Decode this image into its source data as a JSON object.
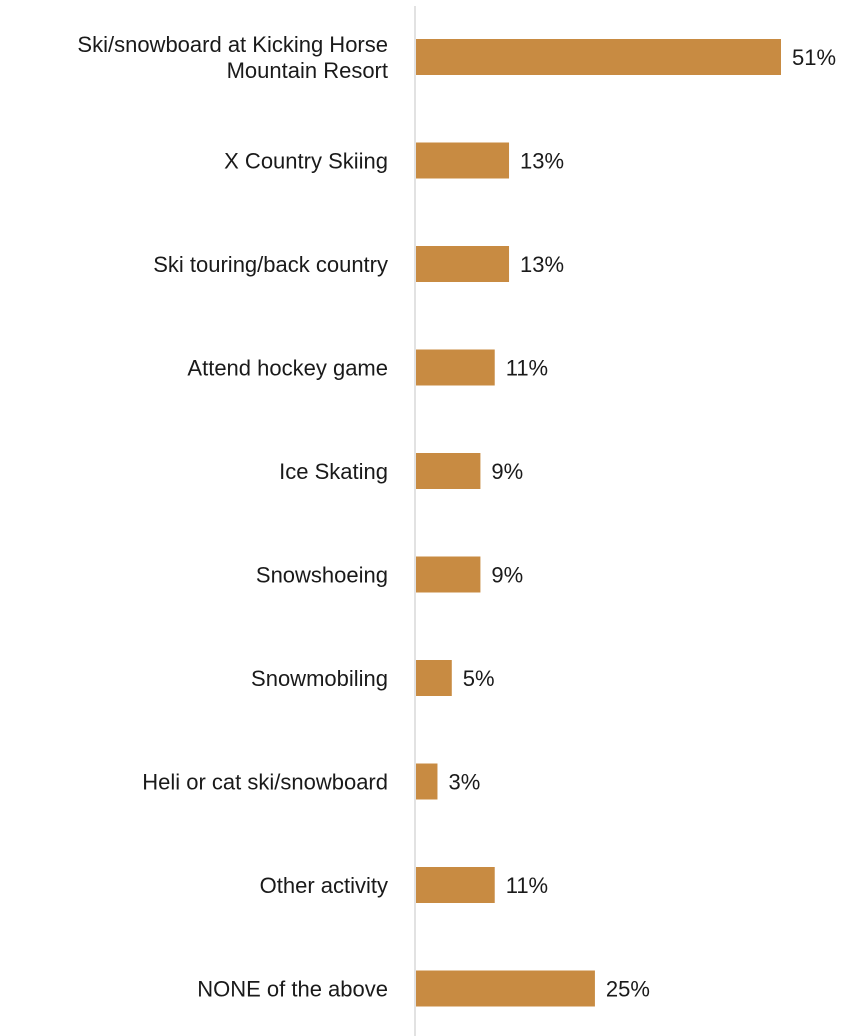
{
  "chart_data": {
    "type": "bar",
    "orientation": "horizontal",
    "title": "",
    "xlabel": "",
    "ylabel": "",
    "categories": [
      "Ski/snowboard at Kicking Horse Mountain Resort",
      "X Country Skiing",
      "Ski touring/back country",
      "Attend hockey game",
      "Ice Skating",
      "Snowshoeing",
      "Snowmobiling",
      "Heli or cat ski/snowboard",
      "Other activity",
      "NONE of the above"
    ],
    "category_lines": [
      [
        "Ski/snowboard at Kicking Horse",
        "Mountain Resort"
      ],
      [
        "X Country Skiing"
      ],
      [
        "Ski touring/back country"
      ],
      [
        "Attend hockey game"
      ],
      [
        "Ice Skating"
      ],
      [
        "Snowshoeing"
      ],
      [
        "Snowmobiling"
      ],
      [
        "Heli or cat ski/snowboard"
      ],
      [
        "Other activity"
      ],
      [
        "NONE of the above"
      ]
    ],
    "values": [
      51,
      13,
      13,
      11,
      9,
      9,
      5,
      3,
      11,
      25
    ],
    "value_labels": [
      "51%",
      "13%",
      "13%",
      "11%",
      "9%",
      "9%",
      "5%",
      "3%",
      "11%",
      "25%"
    ],
    "xlim": [
      0,
      60
    ],
    "grid": false,
    "legend": "none",
    "bar_color": "#C88B42",
    "axis_color": "#D9D9D9",
    "text_color": "#1a1a1a"
  }
}
